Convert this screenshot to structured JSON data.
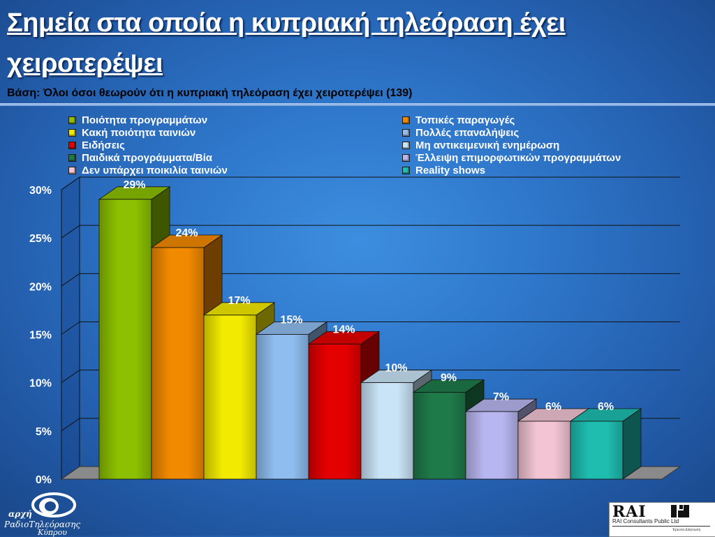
{
  "title": "Σημεία στα οποία η κυπριακή τηλεόραση έχει χειροτερέψει",
  "subtitle": "Βάση: Όλοι όσοι θεωρούν ότι η κυπριακή τηλεόραση έχει χειροτερέψει (139)",
  "logos": {
    "left_line1": "αρχή",
    "left_line2": "ΡαδιοΤηλεόρασης",
    "left_line3": "Κύπρου",
    "right_name": "RAI",
    "right_sub": "RAI Consultants Public Ltd",
    "right_tag": "Έρευνα Διάγνωση"
  },
  "chart_data": {
    "type": "bar",
    "title": "Σημεία στα οποία η κυπριακή τηλεόραση έχει χειροτερέψει",
    "subtitle": "Βάση: Όλοι όσοι θεωρούν ότι η κυπριακή τηλεόραση έχει χειροτερέψει (139)",
    "xlabel": "",
    "ylabel": "",
    "ylim": [
      0,
      30
    ],
    "yticks": [
      "0%",
      "5%",
      "10%",
      "15%",
      "20%",
      "25%",
      "30%"
    ],
    "grid": true,
    "three_d": true,
    "legend_placement": "top",
    "series": [
      {
        "name": "Ποιότητα προγραμμάτων",
        "value": 29,
        "label": "29%",
        "color": "#8cc000"
      },
      {
        "name": "Τοπικές παραγωγές",
        "value": 24,
        "label": "24%",
        "color": "#f28a00"
      },
      {
        "name": "Κακή ποιότητα ταινιών",
        "value": 17,
        "label": "17%",
        "color": "#f2ea00"
      },
      {
        "name": "Πολλές επαναλήψεις",
        "value": 15,
        "label": "15%",
        "color": "#8fbdf0"
      },
      {
        "name": "Ειδήσεις",
        "value": 14,
        "label": "14%",
        "color": "#e40000"
      },
      {
        "name": "Μη αντικειμενική ενημέρωση",
        "value": 10,
        "label": "10%",
        "color": "#c9e4f7"
      },
      {
        "name": "Παιδικά προγράμματα/Βία",
        "value": 9,
        "label": "9%",
        "color": "#1f7a4a"
      },
      {
        "name": "Έλλειψη επιμορφωτικών προγραμμάτων",
        "value": 7,
        "label": "7%",
        "color": "#b8b6f0"
      },
      {
        "name": "Δεν υπάρχει ποικιλία ταινιών",
        "value": 6,
        "label": "6%",
        "color": "#f2c4d4"
      },
      {
        "name": "Reality shows",
        "value": 6,
        "label": "6%",
        "color": "#1fbdb0"
      }
    ]
  }
}
